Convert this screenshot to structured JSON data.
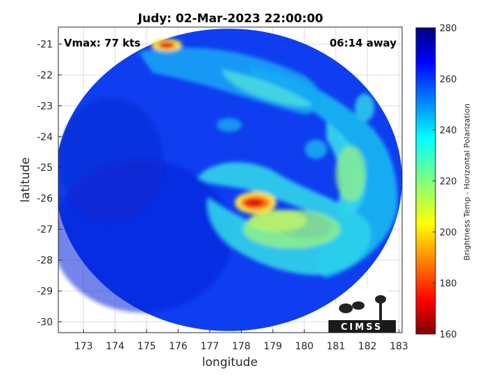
{
  "chart_data": {
    "type": "heatmap",
    "title": "Judy: 02-Mar-2023 22:00:00",
    "xlabel": "longitude",
    "ylabel": "latitude",
    "xlim": [
      172.2,
      183.1
    ],
    "ylim": [
      -30.35,
      -20.45
    ],
    "x_ticks": [
      "173",
      "174",
      "175",
      "176",
      "177",
      "178",
      "179",
      "180",
      "181",
      "182",
      "183"
    ],
    "y_ticks": [
      "-21",
      "-22",
      "-23",
      "-24",
      "-25",
      "-26",
      "-27",
      "-28",
      "-29",
      "-30"
    ],
    "x_tick_values": [
      173,
      174,
      175,
      176,
      177,
      178,
      179,
      180,
      181,
      182,
      183
    ],
    "y_tick_values": [
      -21,
      -22,
      -23,
      -24,
      -25,
      -26,
      -27,
      -28,
      -29,
      -30
    ],
    "grid": true,
    "colorbar": {
      "label": "Brightness Temp - Horizontal Polarization",
      "range": [
        160,
        280
      ],
      "ticks": [
        "280",
        "260",
        "240",
        "220",
        "200",
        "180",
        "160"
      ],
      "tick_values": [
        280,
        260,
        240,
        220,
        200,
        180,
        160
      ],
      "colormap": "jet"
    },
    "swath": {
      "center_lon": 177.6,
      "center_lat": -25.4,
      "radius_lon": 5.5,
      "radius_lat": 4.9,
      "background_temp": 262
    },
    "features": [
      {
        "name": "eye",
        "lon": 178.15,
        "lat": -26.1,
        "min_temp": 178,
        "type": "cold-core"
      },
      {
        "name": "inner-band",
        "lon": 178.8,
        "lat": -26.8,
        "temp": 228
      },
      {
        "name": "outer-rainband",
        "lon": 181.5,
        "lat": -24.8,
        "temp": 232
      },
      {
        "name": "northern-cell",
        "lon": 175.7,
        "lat": -21.0,
        "min_temp": 190
      }
    ]
  },
  "annotations": {
    "vmax": "Vmax: 77 kts",
    "away": "06:14 away"
  },
  "logo": {
    "text": "CIMSS"
  }
}
